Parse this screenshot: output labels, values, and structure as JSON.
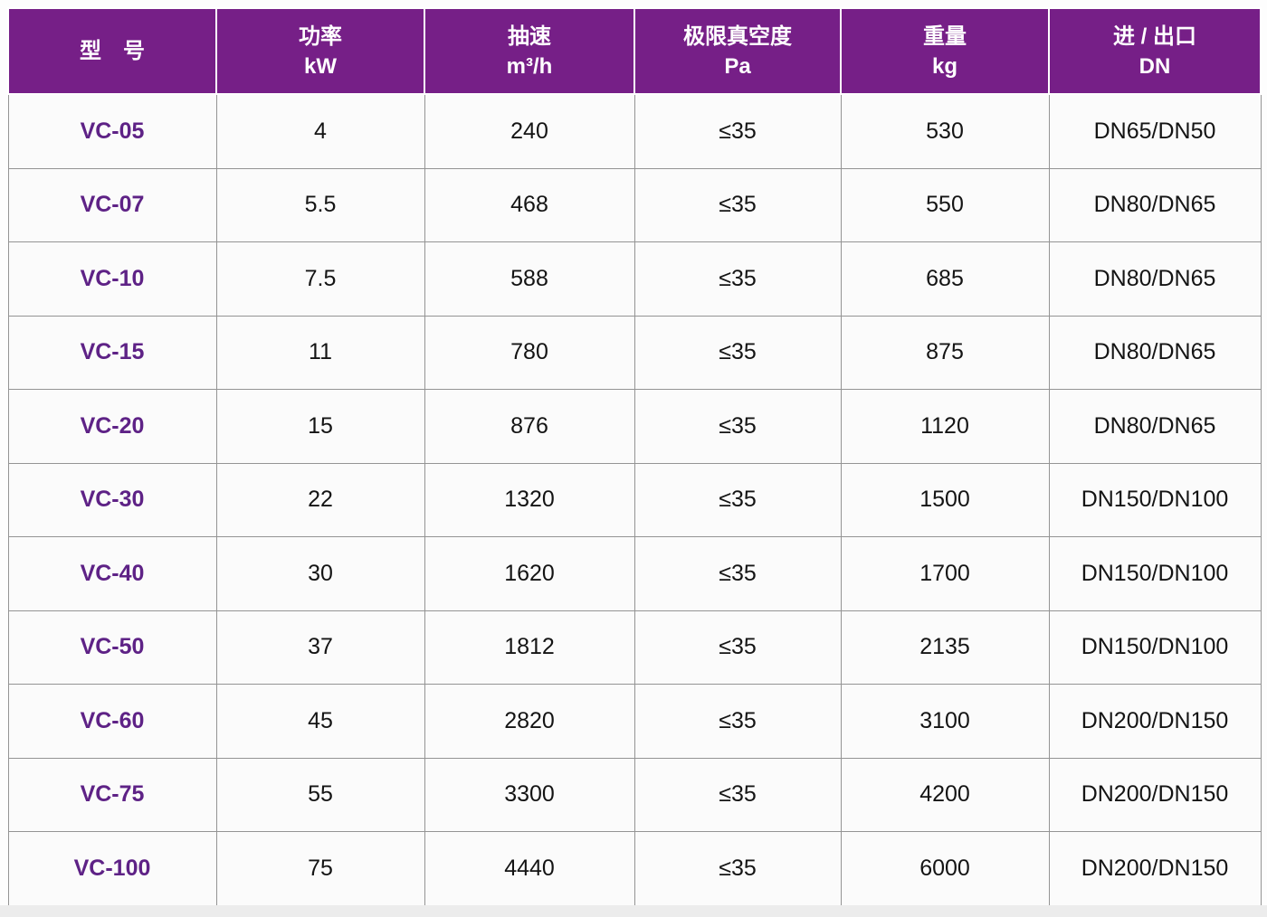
{
  "colors": {
    "header_background": "#761f87",
    "header_text": "#ffffff",
    "model_text": "#5e2286",
    "cell_text": "#141414",
    "cell_background": "#fbfbfb",
    "grid_border": "#949494",
    "page_background": "#fdfdfd",
    "bottom_strip": "#ececec"
  },
  "table": {
    "columns": [
      {
        "line1": "型　号",
        "line2": ""
      },
      {
        "line1": "功率",
        "line2": "kW"
      },
      {
        "line1": "抽速",
        "line2": "m³/h"
      },
      {
        "line1": "极限真空度",
        "line2": "Pa"
      },
      {
        "line1": "重量",
        "line2": "kg"
      },
      {
        "line1": "进 / 出口",
        "line2": "DN"
      }
    ]
  },
  "chart_data": {
    "type": "table",
    "title": "",
    "columns": [
      "型 号",
      "功率 kW",
      "抽速 m³/h",
      "极限真空度 Pa",
      "重量 kg",
      "进 / 出口 DN"
    ],
    "rows": [
      [
        "VC-05",
        "4",
        "240",
        "≤35",
        "530",
        "DN65/DN50"
      ],
      [
        "VC-07",
        "5.5",
        "468",
        "≤35",
        "550",
        "DN80/DN65"
      ],
      [
        "VC-10",
        "7.5",
        "588",
        "≤35",
        "685",
        "DN80/DN65"
      ],
      [
        "VC-15",
        "11",
        "780",
        "≤35",
        "875",
        "DN80/DN65"
      ],
      [
        "VC-20",
        "15",
        "876",
        "≤35",
        "1120",
        "DN80/DN65"
      ],
      [
        "VC-30",
        "22",
        "1320",
        "≤35",
        "1500",
        "DN150/DN100"
      ],
      [
        "VC-40",
        "30",
        "1620",
        "≤35",
        "1700",
        "DN150/DN100"
      ],
      [
        "VC-50",
        "37",
        "1812",
        "≤35",
        "2135",
        "DN150/DN100"
      ],
      [
        "VC-60",
        "45",
        "2820",
        "≤35",
        "3100",
        "DN200/DN150"
      ],
      [
        "VC-75",
        "55",
        "3300",
        "≤35",
        "4200",
        "DN200/DN150"
      ],
      [
        "VC-100",
        "75",
        "4440",
        "≤35",
        "6000",
        "DN200/DN150"
      ]
    ]
  }
}
